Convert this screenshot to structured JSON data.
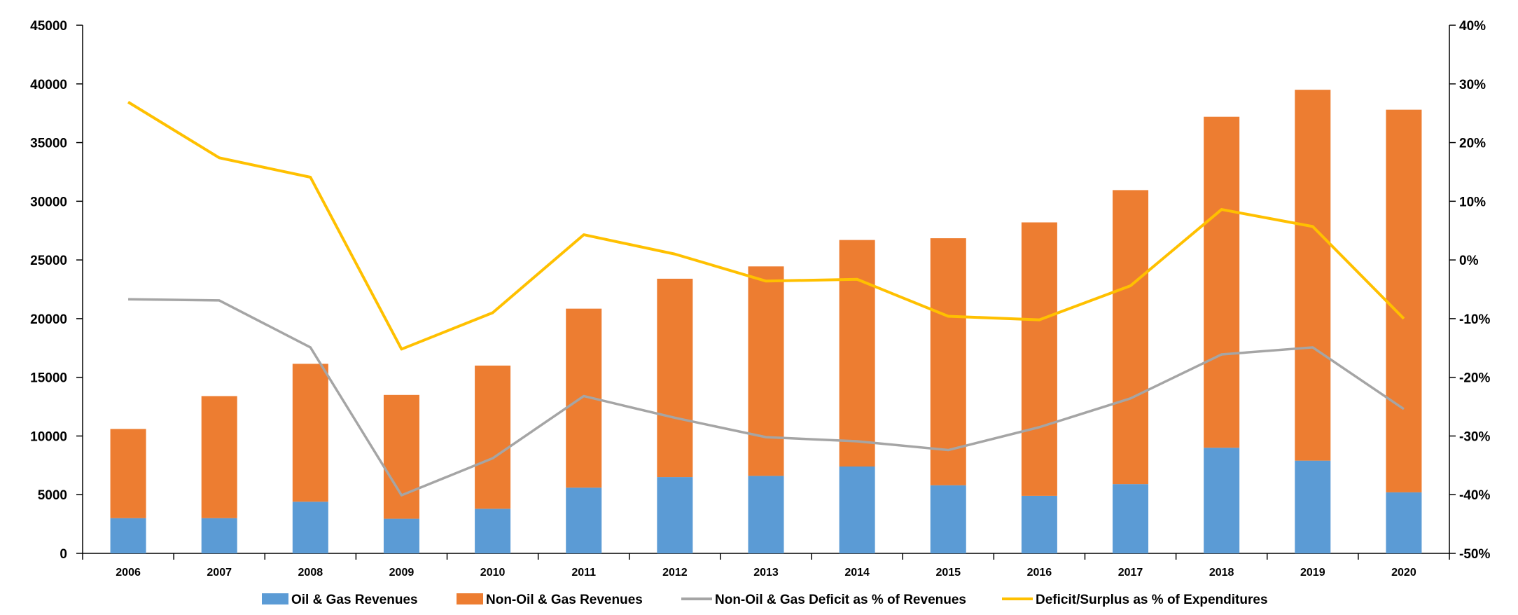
{
  "chart_data": {
    "type": "bar",
    "stacked": true,
    "categories": [
      "2006",
      "2007",
      "2008",
      "2009",
      "2010",
      "2011",
      "2012",
      "2013",
      "2014",
      "2015",
      "2016",
      "2017",
      "2018",
      "2019",
      "2020"
    ],
    "series": [
      {
        "name": "Oil & Gas Revenues",
        "kind": "bar",
        "axis": "left",
        "color": "#5B9BD5",
        "values": [
          3000,
          3000,
          4400,
          2950,
          3800,
          5600,
          6500,
          6600,
          7400,
          5800,
          4900,
          5900,
          9000,
          7900,
          5200
        ]
      },
      {
        "name": "Non-Oil & Gas Revenues",
        "kind": "bar",
        "axis": "left",
        "color": "#ED7D31",
        "values": [
          7600,
          10400,
          11750,
          10550,
          12200,
          15250,
          16900,
          17850,
          19300,
          21050,
          23300,
          25050,
          28200,
          31600,
          32600
        ]
      },
      {
        "name": "Non-Oil & Gas Deficit as % of Revenues",
        "kind": "line",
        "axis": "right",
        "color": "#A5A5A5",
        "values": [
          -6.7,
          -6.9,
          -14.9,
          -40.1,
          -33.8,
          -23.2,
          -26.9,
          -30.2,
          -30.9,
          -32.4,
          -28.5,
          -23.6,
          -16.1,
          -14.9,
          -25.4
        ]
      },
      {
        "name": "Deficit/Surplus as % of Expenditures",
        "kind": "line",
        "axis": "right",
        "color": "#FFC000",
        "values": [
          26.9,
          17.4,
          14.1,
          -15.2,
          -9.0,
          4.3,
          1.0,
          -3.6,
          -3.3,
          -9.6,
          -10.2,
          -4.4,
          8.6,
          5.7,
          -10.0
        ]
      }
    ],
    "y_left": {
      "min": 0,
      "max": 45000,
      "step": 5000,
      "tick_labels": [
        "0",
        "5000",
        "10000",
        "15000",
        "20000",
        "25000",
        "30000",
        "35000",
        "40000",
        "45000"
      ]
    },
    "y_right": {
      "min": -50,
      "max": 40,
      "step": 10,
      "tick_labels": [
        "-50%",
        "-40%",
        "-30%",
        "-20%",
        "-10%",
        "0%",
        "10%",
        "20%",
        "30%",
        "40%"
      ]
    },
    "grid": false,
    "legend_position": "bottom"
  }
}
